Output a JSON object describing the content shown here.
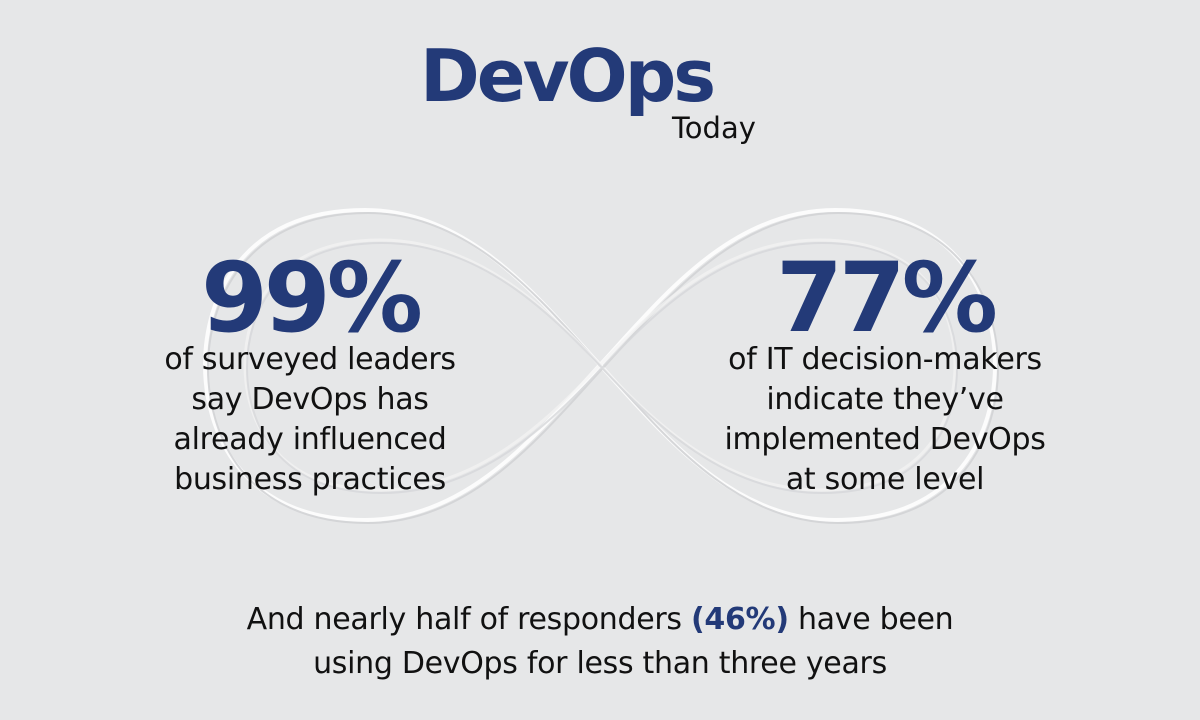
{
  "logo": {
    "main": "DevOps",
    "sub": "Today"
  },
  "stats": [
    {
      "number": "99%",
      "lines": [
        "of surveyed leaders",
        "say DevOps has",
        "already influenced",
        "business practices"
      ]
    },
    {
      "number": "77%",
      "lines": [
        "of IT decision-makers",
        "indicate they’ve",
        "implemented DevOps",
        "at some level"
      ]
    }
  ],
  "footer": {
    "before": "And nearly half of responders ",
    "highlight": "(46%)",
    "after": " have been",
    "line2": "using DevOps for less than three years"
  },
  "colors": {
    "background": "#e6e7e8",
    "accent": "#233a78",
    "text": "#111111"
  },
  "icons": {
    "background_decoration": "infinity-loop-icon"
  }
}
